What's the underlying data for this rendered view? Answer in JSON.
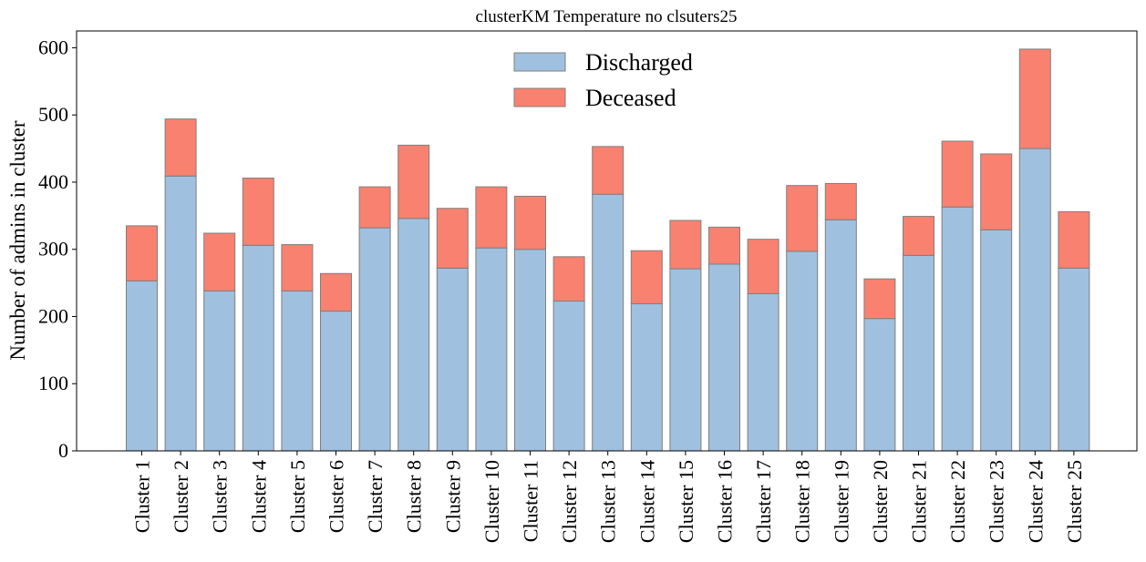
{
  "chart_data": {
    "type": "bar",
    "stacked": true,
    "title": "clusterKM Temperature no clsuters25",
    "xlabel": "",
    "ylabel": "Number of admins in cluster",
    "ylim": [
      0,
      625
    ],
    "yticks": [
      0,
      100,
      200,
      300,
      400,
      500,
      600
    ],
    "grid": false,
    "legend_position": "top-center",
    "categories": [
      "Cluster 1",
      "Cluster 2",
      "Cluster 3",
      "Cluster 4",
      "Cluster 5",
      "Cluster 6",
      "Cluster 7",
      "Cluster 8",
      "Cluster 9",
      "Cluster 10",
      "Cluster 11",
      "Cluster 12",
      "Cluster 13",
      "Cluster 14",
      "Cluster 15",
      "Cluster 16",
      "Cluster 17",
      "Cluster 18",
      "Cluster 19",
      "Cluster 20",
      "Cluster 21",
      "Cluster 22",
      "Cluster 23",
      "Cluster 24",
      "Cluster 25"
    ],
    "series": [
      {
        "name": "Discharged",
        "color": "#a0c0df",
        "values": [
          253,
          409,
          238,
          306,
          238,
          208,
          332,
          346,
          272,
          302,
          300,
          223,
          382,
          219,
          271,
          278,
          234,
          297,
          344,
          197,
          291,
          363,
          329,
          450,
          272
        ]
      },
      {
        "name": "Deceased",
        "color": "#f98170",
        "values": [
          82,
          85,
          86,
          100,
          69,
          56,
          61,
          109,
          89,
          91,
          79,
          66,
          71,
          79,
          72,
          55,
          81,
          98,
          54,
          59,
          58,
          98,
          113,
          148,
          84
        ]
      }
    ]
  }
}
